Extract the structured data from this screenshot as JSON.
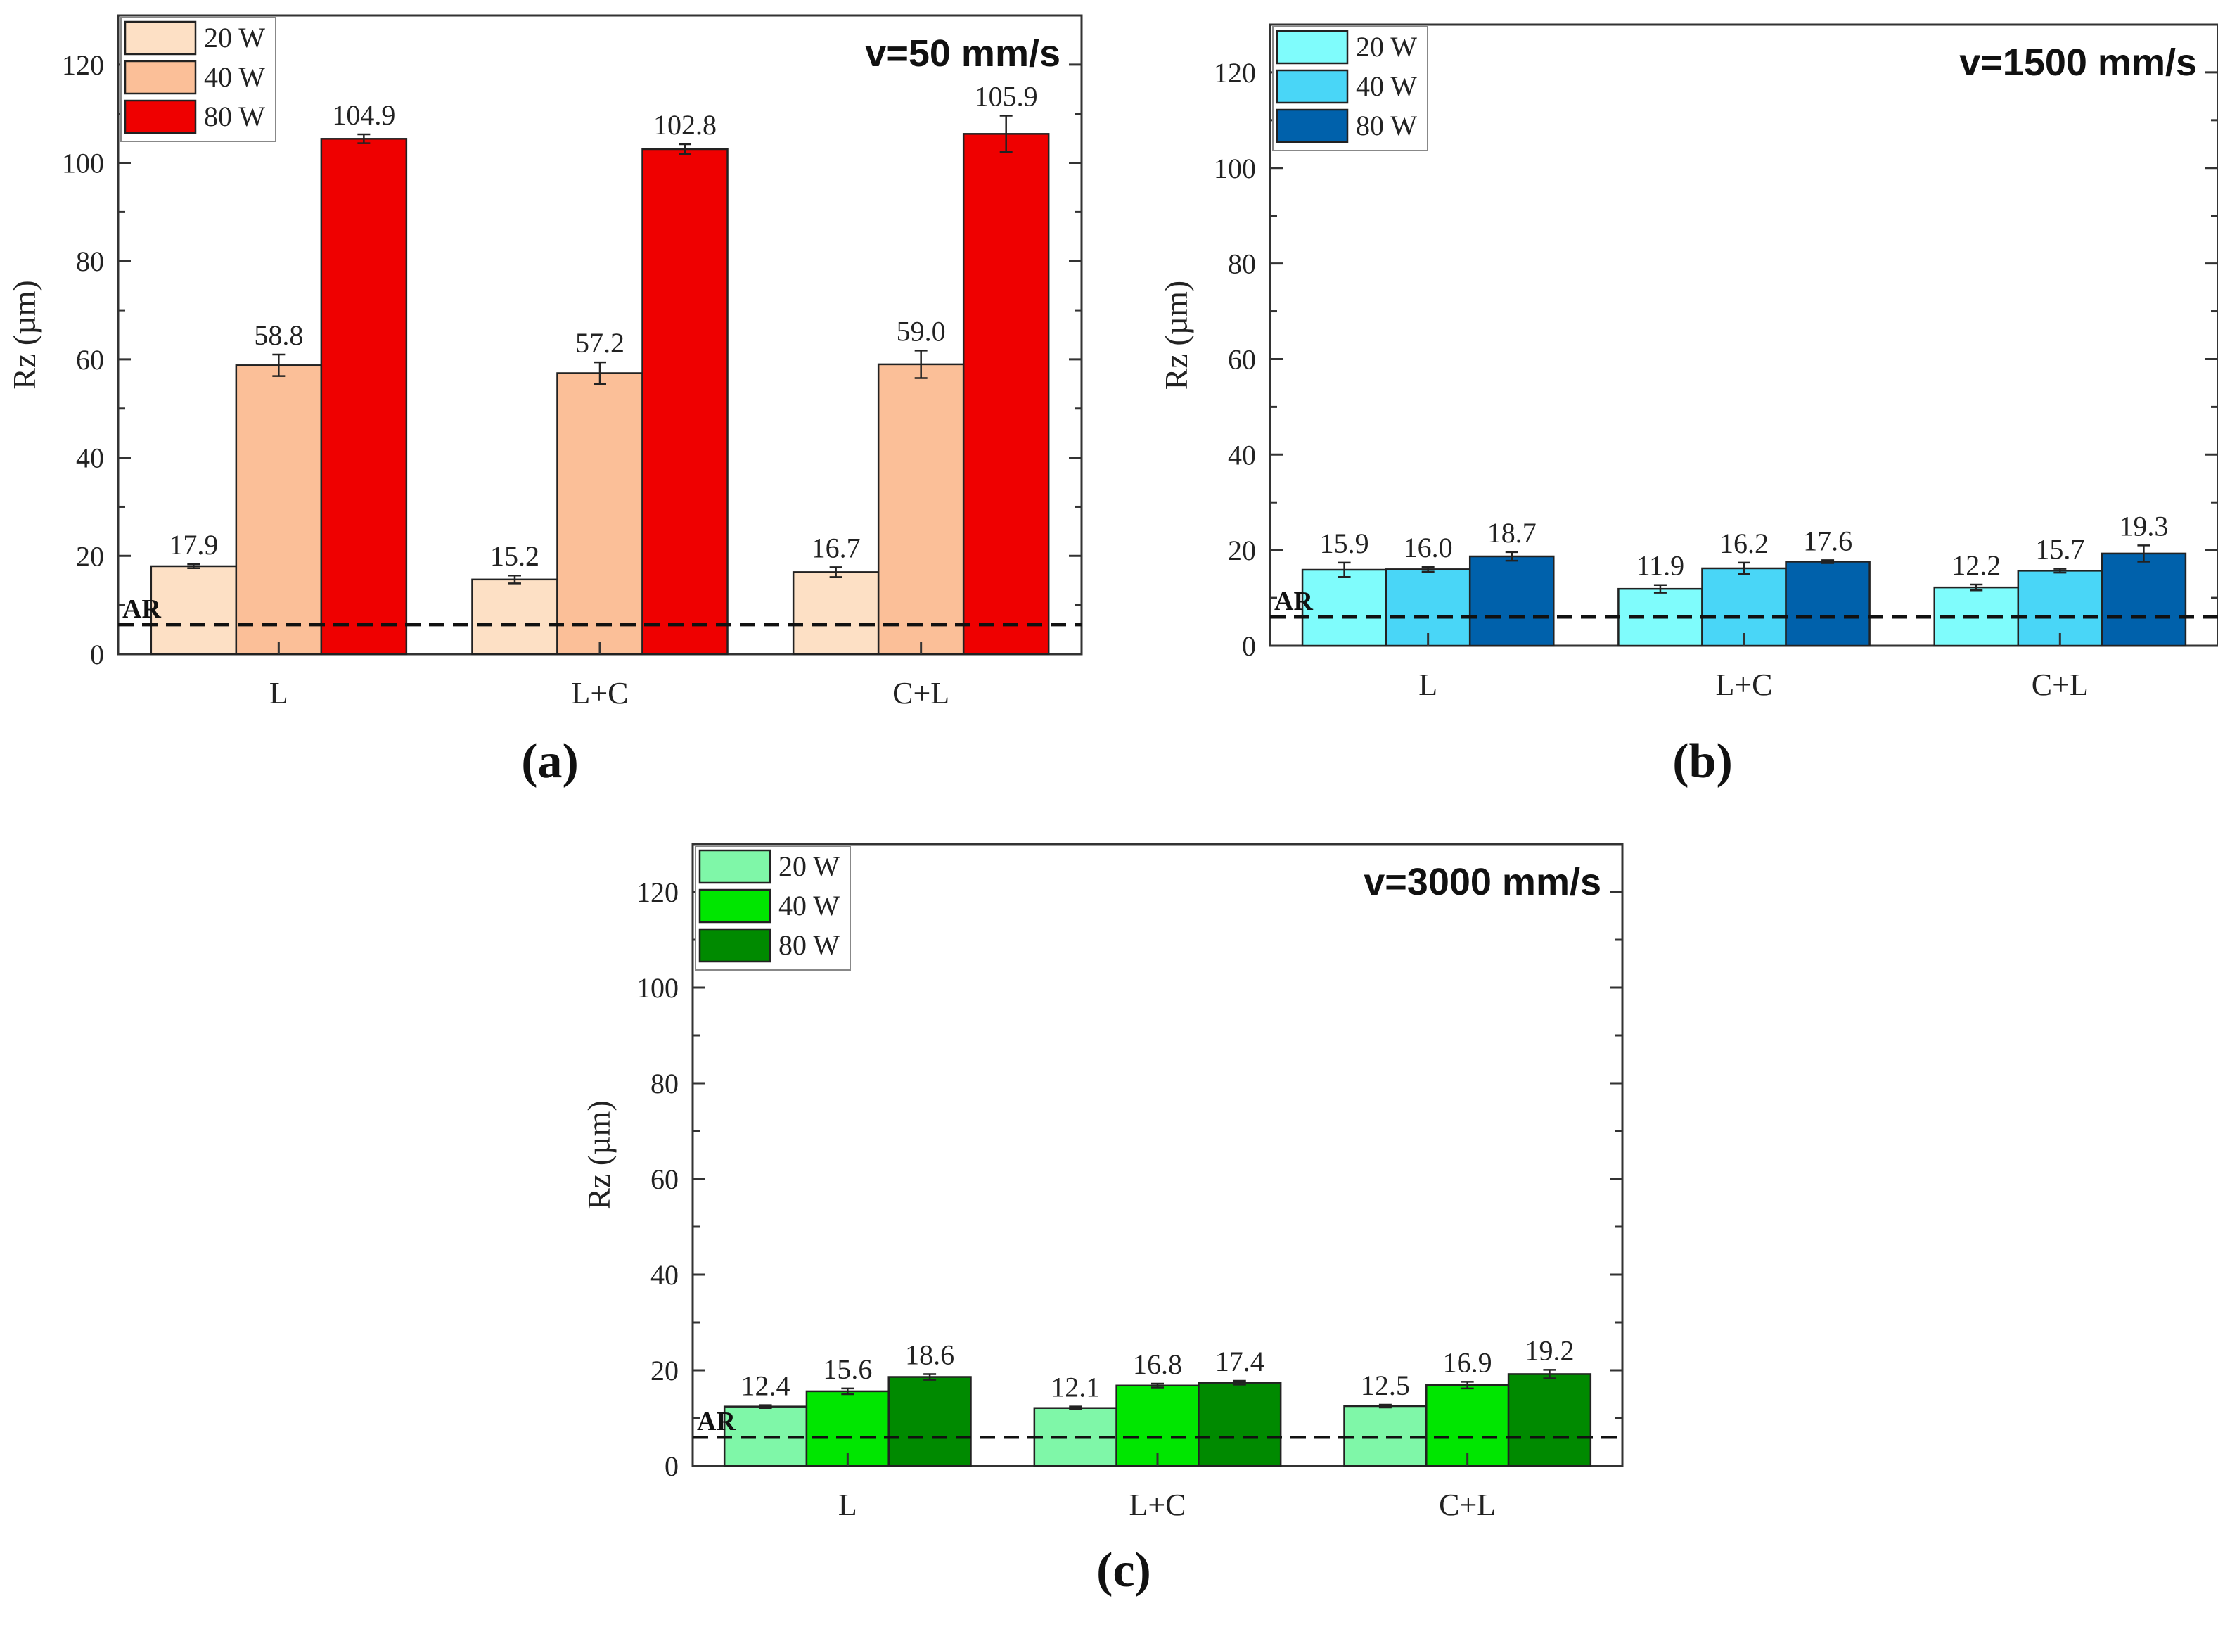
{
  "chart_data": [
    {
      "type": "bar",
      "panel_label": "(a)",
      "title": "v=50 mm/s",
      "ylabel": "Rz (µm)",
      "ylim": [
        0,
        130
      ],
      "yticks": [
        0,
        20,
        40,
        60,
        80,
        100,
        120
      ],
      "categories": [
        "L",
        "L+C",
        "C+L"
      ],
      "reference_line": {
        "label": "AR",
        "value": 6
      },
      "legend_position": "top-left",
      "series": [
        {
          "name": "20 W",
          "color": "#fde0c5",
          "values": [
            17.9,
            15.2,
            16.7
          ],
          "errors": [
            0.4,
            0.8,
            1.0
          ],
          "labels": [
            "17.9",
            "15.2",
            "16.7"
          ]
        },
        {
          "name": "40 W",
          "color": "#fbbf98",
          "values": [
            58.8,
            57.2,
            59.0
          ],
          "errors": [
            2.2,
            2.2,
            2.8
          ],
          "labels": [
            "58.8",
            "57.2",
            "59.0"
          ]
        },
        {
          "name": "80 W",
          "color": "#ef0000",
          "values": [
            104.9,
            102.8,
            105.9
          ],
          "errors": [
            0.9,
            1.0,
            3.7
          ],
          "labels": [
            "104.9",
            "102.8",
            "105.9"
          ]
        }
      ]
    },
    {
      "type": "bar",
      "panel_label": "(b)",
      "title": "v=1500 mm/s",
      "ylabel": "Rz (µm)",
      "ylim": [
        0,
        130
      ],
      "yticks": [
        0,
        20,
        40,
        60,
        80,
        100,
        120
      ],
      "categories": [
        "L",
        "L+C",
        "C+L"
      ],
      "reference_line": {
        "label": "AR",
        "value": 6
      },
      "legend_position": "top-left",
      "series": [
        {
          "name": "20 W",
          "color": "#7ffcfc",
          "values": [
            15.9,
            11.9,
            12.2
          ],
          "errors": [
            1.5,
            0.8,
            0.6
          ],
          "labels": [
            "15.9",
            "11.9",
            "12.2"
          ]
        },
        {
          "name": "40 W",
          "color": "#49d6f7",
          "values": [
            16.0,
            16.2,
            15.7
          ],
          "errors": [
            0.5,
            1.2,
            0.4
          ],
          "labels": [
            "16.0",
            "16.2",
            "15.7"
          ]
        },
        {
          "name": "80 W",
          "color": "#0061ab",
          "values": [
            18.7,
            17.6,
            19.3
          ],
          "errors": [
            0.9,
            0.3,
            1.7
          ],
          "labels": [
            "18.7",
            "17.6",
            "19.3"
          ]
        }
      ]
    },
    {
      "type": "bar",
      "panel_label": "(c)",
      "title": "v=3000 mm/s",
      "ylabel": "Rz (µm)",
      "ylim": [
        0,
        130
      ],
      "yticks": [
        0,
        20,
        40,
        60,
        80,
        100,
        120
      ],
      "categories": [
        "L",
        "L+C",
        "C+L"
      ],
      "reference_line": {
        "label": "AR",
        "value": 6
      },
      "legend_position": "top-left",
      "series": [
        {
          "name": "20 W",
          "color": "#7ff7a8",
          "values": [
            12.4,
            12.1,
            12.5
          ],
          "errors": [
            0.3,
            0.3,
            0.3
          ],
          "labels": [
            "12.4",
            "12.1",
            "12.5"
          ]
        },
        {
          "name": "40 W",
          "color": "#00e600",
          "values": [
            15.6,
            16.8,
            16.9
          ],
          "errors": [
            0.6,
            0.4,
            0.7
          ],
          "labels": [
            "15.6",
            "16.8",
            "16.9"
          ]
        },
        {
          "name": "80 W",
          "color": "#008a00",
          "values": [
            18.6,
            17.4,
            19.2
          ],
          "errors": [
            0.6,
            0.4,
            0.9
          ],
          "labels": [
            "18.6",
            "17.4",
            "19.2"
          ]
        }
      ]
    }
  ]
}
